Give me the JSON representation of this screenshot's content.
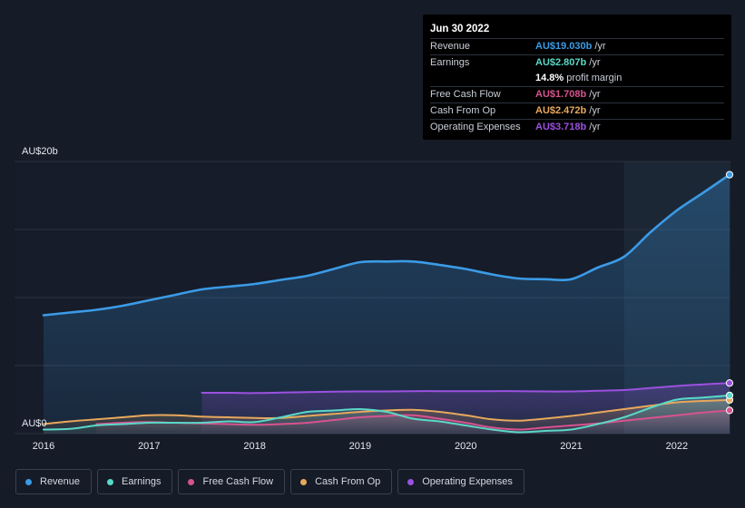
{
  "chart_data": {
    "type": "line",
    "y_unit": "AU$b",
    "ylim": [
      0,
      20
    ],
    "y_ticks": [
      {
        "value": 0,
        "label": "AU$0"
      },
      {
        "value": 20,
        "label": "AU$20b"
      }
    ],
    "x_ticks": [
      {
        "value": 2016,
        "label": "2016"
      },
      {
        "value": 2017,
        "label": "2017"
      },
      {
        "value": 2018,
        "label": "2018"
      },
      {
        "value": 2019,
        "label": "2019"
      },
      {
        "value": 2020,
        "label": "2020"
      },
      {
        "value": 2021,
        "label": "2021"
      },
      {
        "value": 2022,
        "label": "2022"
      }
    ],
    "xlim": [
      2015.6,
      2022.5
    ],
    "highlight_from": 2021.5,
    "grid": "horizontal",
    "legend_position": "bottom",
    "series": [
      {
        "name": "Revenue",
        "color": "#3b9be6",
        "fill": true,
        "points": [
          [
            2016.0,
            8.7
          ],
          [
            2016.25,
            8.9
          ],
          [
            2016.5,
            9.1
          ],
          [
            2016.75,
            9.4
          ],
          [
            2017.0,
            9.8
          ],
          [
            2017.25,
            10.2
          ],
          [
            2017.5,
            10.6
          ],
          [
            2017.75,
            10.8
          ],
          [
            2018.0,
            11.0
          ],
          [
            2018.25,
            11.3
          ],
          [
            2018.5,
            11.6
          ],
          [
            2018.75,
            12.1
          ],
          [
            2019.0,
            12.6
          ],
          [
            2019.25,
            12.65
          ],
          [
            2019.5,
            12.65
          ],
          [
            2019.75,
            12.4
          ],
          [
            2020.0,
            12.1
          ],
          [
            2020.25,
            11.7
          ],
          [
            2020.5,
            11.4
          ],
          [
            2020.75,
            11.35
          ],
          [
            2021.0,
            11.35
          ],
          [
            2021.25,
            12.2
          ],
          [
            2021.5,
            13.0
          ],
          [
            2021.75,
            14.8
          ],
          [
            2022.0,
            16.4
          ],
          [
            2022.25,
            17.7
          ],
          [
            2022.5,
            19.03
          ]
        ]
      },
      {
        "name": "Earnings",
        "color": "#5ad8c8",
        "fill": true,
        "points": [
          [
            2016.0,
            0.3
          ],
          [
            2016.25,
            0.35
          ],
          [
            2016.5,
            0.6
          ],
          [
            2016.75,
            0.7
          ],
          [
            2017.0,
            0.8
          ],
          [
            2017.25,
            0.8
          ],
          [
            2017.5,
            0.8
          ],
          [
            2017.75,
            0.9
          ],
          [
            2018.0,
            0.85
          ],
          [
            2018.25,
            1.2
          ],
          [
            2018.5,
            1.6
          ],
          [
            2018.75,
            1.7
          ],
          [
            2019.0,
            1.8
          ],
          [
            2019.25,
            1.6
          ],
          [
            2019.5,
            1.1
          ],
          [
            2019.75,
            0.9
          ],
          [
            2020.0,
            0.6
          ],
          [
            2020.25,
            0.3
          ],
          [
            2020.5,
            0.1
          ],
          [
            2020.75,
            0.2
          ],
          [
            2021.0,
            0.3
          ],
          [
            2021.25,
            0.7
          ],
          [
            2021.5,
            1.2
          ],
          [
            2021.75,
            1.9
          ],
          [
            2022.0,
            2.5
          ],
          [
            2022.25,
            2.65
          ],
          [
            2022.5,
            2.807
          ]
        ]
      },
      {
        "name": "Free Cash Flow",
        "color": "#d6538f",
        "fill": true,
        "points": [
          [
            2016.5,
            0.7
          ],
          [
            2016.75,
            0.8
          ],
          [
            2017.0,
            0.85
          ],
          [
            2017.25,
            0.8
          ],
          [
            2017.5,
            0.75
          ],
          [
            2017.75,
            0.7
          ],
          [
            2018.0,
            0.65
          ],
          [
            2018.25,
            0.7
          ],
          [
            2018.5,
            0.8
          ],
          [
            2018.75,
            1.0
          ],
          [
            2019.0,
            1.2
          ],
          [
            2019.25,
            1.3
          ],
          [
            2019.5,
            1.35
          ],
          [
            2019.75,
            1.1
          ],
          [
            2020.0,
            0.8
          ],
          [
            2020.25,
            0.45
          ],
          [
            2020.5,
            0.3
          ],
          [
            2020.75,
            0.45
          ],
          [
            2021.0,
            0.6
          ],
          [
            2021.25,
            0.75
          ],
          [
            2021.5,
            0.95
          ],
          [
            2021.75,
            1.15
          ],
          [
            2022.0,
            1.35
          ],
          [
            2022.25,
            1.55
          ],
          [
            2022.5,
            1.708
          ]
        ]
      },
      {
        "name": "Cash From Op",
        "color": "#e8a85c",
        "fill": true,
        "points": [
          [
            2016.0,
            0.7
          ],
          [
            2016.25,
            0.9
          ],
          [
            2016.5,
            1.05
          ],
          [
            2016.75,
            1.2
          ],
          [
            2017.0,
            1.35
          ],
          [
            2017.25,
            1.35
          ],
          [
            2017.5,
            1.25
          ],
          [
            2017.75,
            1.2
          ],
          [
            2018.0,
            1.15
          ],
          [
            2018.25,
            1.15
          ],
          [
            2018.5,
            1.3
          ],
          [
            2018.75,
            1.45
          ],
          [
            2019.0,
            1.6
          ],
          [
            2019.25,
            1.7
          ],
          [
            2019.5,
            1.75
          ],
          [
            2019.75,
            1.6
          ],
          [
            2020.0,
            1.35
          ],
          [
            2020.25,
            1.05
          ],
          [
            2020.5,
            0.95
          ],
          [
            2020.75,
            1.1
          ],
          [
            2021.0,
            1.3
          ],
          [
            2021.25,
            1.55
          ],
          [
            2021.5,
            1.8
          ],
          [
            2021.75,
            2.05
          ],
          [
            2022.0,
            2.3
          ],
          [
            2022.25,
            2.4
          ],
          [
            2022.5,
            2.472
          ]
        ]
      },
      {
        "name": "Operating Expenses",
        "color": "#9b51e0",
        "fill": true,
        "points": [
          [
            2017.5,
            3.0
          ],
          [
            2017.75,
            3.0
          ],
          [
            2018.0,
            2.98
          ],
          [
            2018.25,
            3.02
          ],
          [
            2018.5,
            3.05
          ],
          [
            2018.75,
            3.08
          ],
          [
            2019.0,
            3.1
          ],
          [
            2019.25,
            3.1
          ],
          [
            2019.5,
            3.12
          ],
          [
            2019.75,
            3.12
          ],
          [
            2020.0,
            3.12
          ],
          [
            2020.25,
            3.12
          ],
          [
            2020.5,
            3.12
          ],
          [
            2020.75,
            3.1
          ],
          [
            2021.0,
            3.1
          ],
          [
            2021.25,
            3.15
          ],
          [
            2021.5,
            3.2
          ],
          [
            2021.75,
            3.35
          ],
          [
            2022.0,
            3.5
          ],
          [
            2022.25,
            3.62
          ],
          [
            2022.5,
            3.718
          ]
        ]
      }
    ]
  },
  "tooltip": {
    "date": "Jun 30 2022",
    "rows": [
      {
        "label": "Revenue",
        "value": "AU$19.030b",
        "unit": "/yr",
        "color": "#3b9be6"
      },
      {
        "label": "Earnings",
        "value": "AU$2.807b",
        "unit": "/yr",
        "color": "#5ad8c8"
      },
      {
        "label": "",
        "value": "14.8%",
        "unit": "profit margin",
        "color": "#ffffff"
      },
      {
        "label": "Free Cash Flow",
        "value": "AU$1.708b",
        "unit": "/yr",
        "color": "#d6538f"
      },
      {
        "label": "Cash From Op",
        "value": "AU$2.472b",
        "unit": "/yr",
        "color": "#e8a85c"
      },
      {
        "label": "Operating Expenses",
        "value": "AU$3.718b",
        "unit": "/yr",
        "color": "#9b51e0"
      }
    ]
  },
  "legend": [
    {
      "label": "Revenue",
      "color": "#3b9be6"
    },
    {
      "label": "Earnings",
      "color": "#5ad8c8"
    },
    {
      "label": "Free Cash Flow",
      "color": "#d6538f"
    },
    {
      "label": "Cash From Op",
      "color": "#e8a85c"
    },
    {
      "label": "Operating Expenses",
      "color": "#9b51e0"
    }
  ]
}
